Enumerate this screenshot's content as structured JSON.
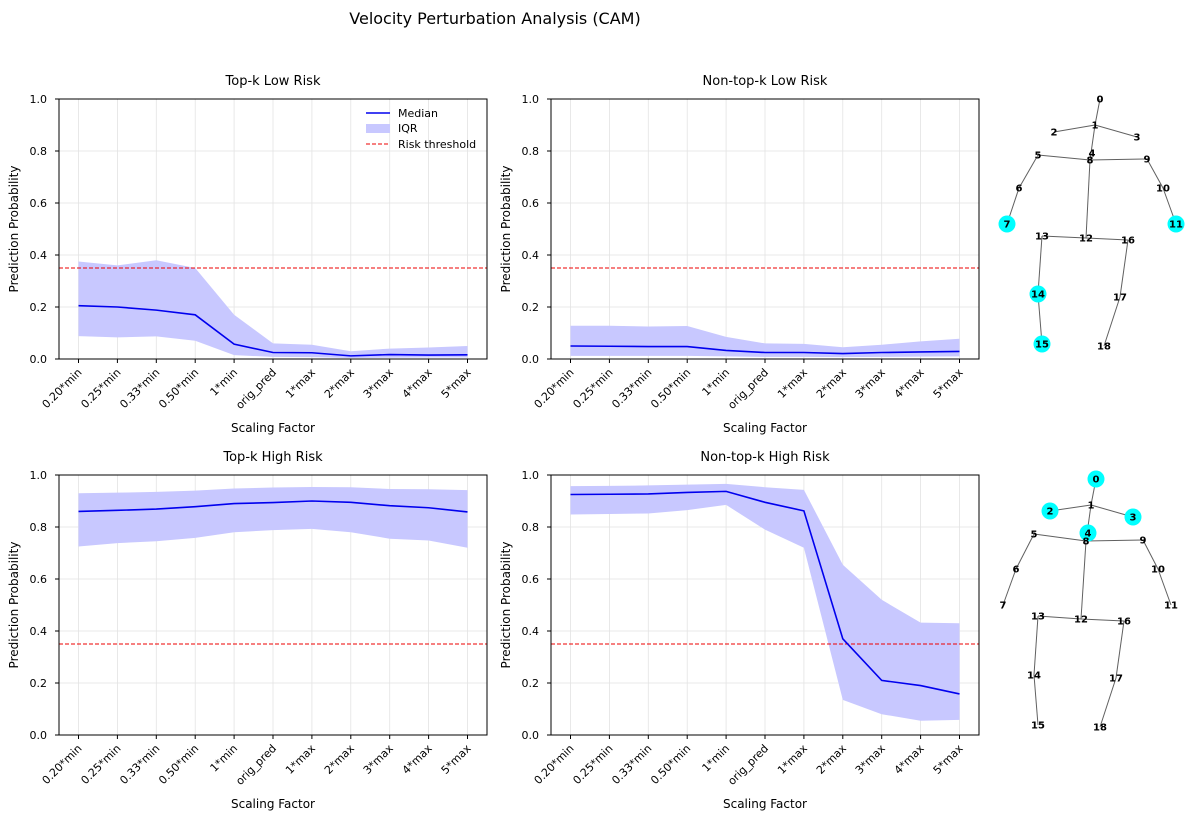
{
  "title": "Velocity Perturbation Analysis (CAM)",
  "chart_data": [
    {
      "type": "line",
      "title": "Top-k Low Risk",
      "xlabel": "Scaling Factor",
      "ylabel": "Prediction Probability",
      "ylim": [
        0,
        1
      ],
      "yticks": [
        "0.0",
        "0.2",
        "0.4",
        "0.6",
        "0.8",
        "1.0"
      ],
      "categories": [
        "0.20*min",
        "0.25*min",
        "0.33*min",
        "0.50*min",
        "1*min",
        "orig_pred",
        "1*max",
        "2*max",
        "3*max",
        "4*max",
        "5*max"
      ],
      "series": [
        {
          "name": "Median",
          "values": [
            0.205,
            0.2,
            0.188,
            0.17,
            0.057,
            0.025,
            0.024,
            0.012,
            0.017,
            0.015,
            0.016
          ]
        },
        {
          "name": "IQR",
          "lower": [
            0.088,
            0.083,
            0.087,
            0.07,
            0.015,
            0.008,
            0.007,
            0.004,
            0.005,
            0.006,
            0.006
          ],
          "upper": [
            0.375,
            0.36,
            0.38,
            0.35,
            0.17,
            0.06,
            0.055,
            0.03,
            0.04,
            0.044,
            0.05
          ]
        }
      ],
      "threshold": 0.35,
      "legend": {
        "position": "top-right",
        "median": "Median",
        "iqr": "IQR",
        "threshold": "Risk threshold"
      }
    },
    {
      "type": "line",
      "title": "Non-top-k Low Risk",
      "xlabel": "Scaling Factor",
      "ylabel": "Prediction Probability",
      "ylim": [
        0,
        1
      ],
      "yticks": [
        "0.0",
        "0.2",
        "0.4",
        "0.6",
        "0.8",
        "1.0"
      ],
      "categories": [
        "0.20*min",
        "0.25*min",
        "0.33*min",
        "0.50*min",
        "1*min",
        "orig_pred",
        "1*max",
        "2*max",
        "3*max",
        "4*max",
        "5*max"
      ],
      "series": [
        {
          "name": "Median",
          "values": [
            0.05,
            0.049,
            0.048,
            0.048,
            0.033,
            0.025,
            0.025,
            0.021,
            0.025,
            0.027,
            0.029
          ]
        },
        {
          "name": "IQR",
          "lower": [
            0.012,
            0.012,
            0.012,
            0.012,
            0.01,
            0.008,
            0.008,
            0.007,
            0.008,
            0.009,
            0.01
          ],
          "upper": [
            0.128,
            0.128,
            0.125,
            0.127,
            0.085,
            0.06,
            0.058,
            0.045,
            0.055,
            0.068,
            0.078
          ]
        }
      ],
      "threshold": 0.35
    },
    {
      "type": "line",
      "title": "Top-k High Risk",
      "xlabel": "Scaling Factor",
      "ylabel": "Prediction Probability",
      "ylim": [
        0,
        1
      ],
      "yticks": [
        "0.0",
        "0.2",
        "0.4",
        "0.6",
        "0.8",
        "1.0"
      ],
      "categories": [
        "0.20*min",
        "0.25*min",
        "0.33*min",
        "0.50*min",
        "1*min",
        "orig_pred",
        "1*max",
        "2*max",
        "3*max",
        "4*max",
        "5*max"
      ],
      "series": [
        {
          "name": "Median",
          "values": [
            0.86,
            0.864,
            0.869,
            0.878,
            0.89,
            0.894,
            0.9,
            0.895,
            0.882,
            0.874,
            0.858
          ]
        },
        {
          "name": "IQR",
          "lower": [
            0.725,
            0.738,
            0.745,
            0.758,
            0.78,
            0.788,
            0.793,
            0.78,
            0.755,
            0.748,
            0.72
          ],
          "upper": [
            0.93,
            0.932,
            0.935,
            0.94,
            0.948,
            0.952,
            0.954,
            0.953,
            0.946,
            0.945,
            0.942
          ]
        }
      ],
      "threshold": 0.35
    },
    {
      "type": "line",
      "title": "Non-top-k High Risk",
      "xlabel": "Scaling Factor",
      "ylabel": "Prediction Probability",
      "ylim": [
        0,
        1
      ],
      "yticks": [
        "0.0",
        "0.2",
        "0.4",
        "0.6",
        "0.8",
        "1.0"
      ],
      "categories": [
        "0.20*min",
        "0.25*min",
        "0.33*min",
        "0.50*min",
        "1*min",
        "orig_pred",
        "1*max",
        "2*max",
        "3*max",
        "4*max",
        "5*max"
      ],
      "series": [
        {
          "name": "Median",
          "values": [
            0.925,
            0.926,
            0.927,
            0.933,
            0.937,
            0.895,
            0.862,
            0.37,
            0.21,
            0.19,
            0.158
          ]
        },
        {
          "name": "IQR",
          "lower": [
            0.848,
            0.85,
            0.852,
            0.865,
            0.885,
            0.79,
            0.72,
            0.135,
            0.08,
            0.055,
            0.058
          ],
          "upper": [
            0.957,
            0.958,
            0.96,
            0.963,
            0.966,
            0.953,
            0.943,
            0.655,
            0.52,
            0.432,
            0.43
          ]
        }
      ],
      "threshold": 0.35
    }
  ],
  "skeletons": [
    {
      "name": "top-k skeleton",
      "joints": [
        "0",
        "1",
        "2",
        "3",
        "4",
        "5",
        "6",
        "7",
        "8",
        "9",
        "10",
        "11",
        "12",
        "13",
        "14",
        "15",
        "16",
        "17",
        "18"
      ],
      "highlighted": [
        "7",
        "11",
        "14",
        "15"
      ],
      "highlight_color": "#00ffff"
    },
    {
      "name": "non-top-k skeleton",
      "joints": [
        "0",
        "1",
        "2",
        "3",
        "4",
        "5",
        "6",
        "7",
        "8",
        "9",
        "10",
        "11",
        "12",
        "13",
        "14",
        "15",
        "16",
        "17",
        "18"
      ],
      "highlighted": [
        "0",
        "2",
        "3",
        "4"
      ],
      "highlight_color": "#00ffff"
    }
  ],
  "colors": {
    "median": "#0000ee",
    "iqr": "#c8c8ff",
    "threshold": "#ee0000"
  }
}
